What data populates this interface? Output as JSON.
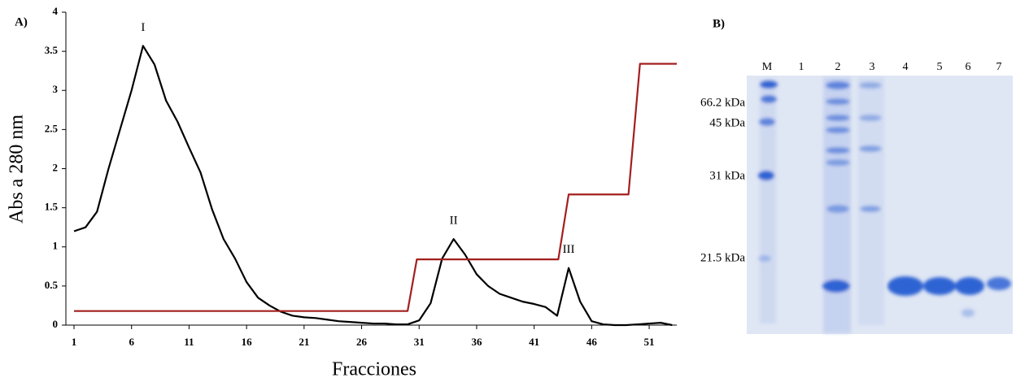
{
  "chart_data": {
    "type": "line",
    "xlabel": "Fracciones",
    "ylabel": "Abs a 280 nm",
    "xlim": [
      1,
      53.4
    ],
    "ylim": [
      0,
      4
    ],
    "xticks": [
      1,
      6,
      11,
      16,
      21,
      26,
      31,
      36,
      41,
      46,
      51
    ],
    "yticks": [
      0,
      0.5,
      1,
      1.5,
      2,
      2.5,
      3,
      3.5,
      4
    ],
    "grid": false,
    "series": [
      {
        "color": "#000000",
        "x": [
          1,
          2,
          3,
          4,
          5,
          6,
          7,
          8,
          9,
          10,
          11,
          12,
          13,
          14,
          15,
          16,
          17,
          18,
          19,
          20,
          21,
          22,
          23,
          24,
          25,
          26,
          27,
          28,
          29,
          30,
          31,
          32,
          33,
          34,
          35,
          36,
          37,
          38,
          39,
          40,
          41,
          42,
          43,
          44,
          45,
          46,
          47,
          48,
          49,
          50,
          51,
          52,
          53
        ],
        "values": [
          1.2,
          1.25,
          1.45,
          2.0,
          2.5,
          3.0,
          3.57,
          3.33,
          2.87,
          2.6,
          2.27,
          1.95,
          1.48,
          1.1,
          0.85,
          0.55,
          0.35,
          0.25,
          0.17,
          0.12,
          0.1,
          0.09,
          0.07,
          0.05,
          0.04,
          0.03,
          0.02,
          0.02,
          0.01,
          0.01,
          0.06,
          0.28,
          0.85,
          1.1,
          0.9,
          0.65,
          0.5,
          0.4,
          0.35,
          0.3,
          0.27,
          0.23,
          0.12,
          0.73,
          0.3,
          0.05,
          0.01,
          0,
          0,
          0.01,
          0.02,
          0.03,
          0
        ]
      },
      {
        "color": "#a31f1f",
        "x": [
          1,
          30,
          30.8,
          43.1,
          44,
          49.2,
          50.2,
          53.4
        ],
        "values": [
          0.18,
          0.18,
          0.84,
          0.84,
          1.67,
          1.67,
          3.34,
          3.34
        ]
      }
    ],
    "annotations": [
      {
        "text": "I",
        "x": 7,
        "y": 3.57
      },
      {
        "text": "II",
        "x": 34,
        "y": 1.1
      },
      {
        "text": "III",
        "x": 44,
        "y": 0.73
      }
    ]
  },
  "panel_labels": [
    "A)",
    "B)"
  ],
  "gel": {
    "lanes": [
      "M",
      "1",
      "2",
      "3",
      "4",
      "5",
      "6",
      "7"
    ],
    "markers": [
      "66.2 kDa",
      "45 kDa",
      "31 kDa",
      "21.5 kDa"
    ]
  }
}
